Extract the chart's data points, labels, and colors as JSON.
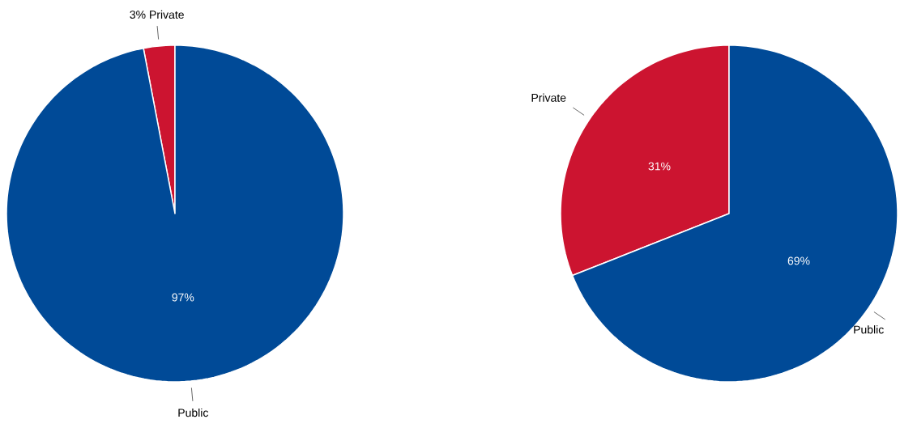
{
  "chart_data": [
    {
      "type": "pie",
      "categories": [
        "Private",
        "Public"
      ],
      "values": [
        3,
        97
      ],
      "colors": [
        "#cc1430",
        "#004a97"
      ],
      "value_labels": [
        "3%",
        "97%"
      ]
    },
    {
      "type": "pie",
      "categories": [
        "Private",
        "Public"
      ],
      "values": [
        31,
        69
      ],
      "colors": [
        "#cc1430",
        "#004a97"
      ],
      "value_labels": [
        "31%",
        "69%"
      ]
    }
  ]
}
